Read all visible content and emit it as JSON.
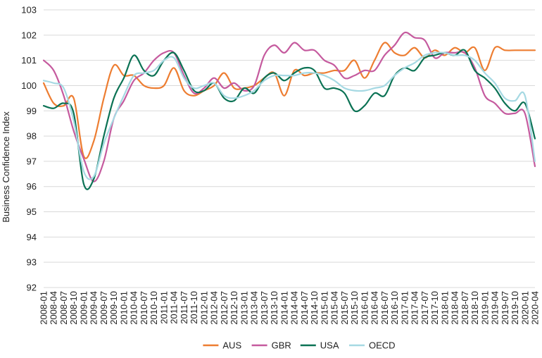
{
  "chart_data": {
    "type": "line",
    "title": "",
    "xlabel": "",
    "ylabel": "Business Confidence Index",
    "ylim": [
      92,
      103
    ],
    "y_ticks": [
      92,
      93,
      94,
      95,
      96,
      97,
      98,
      99,
      100,
      101,
      102,
      103
    ],
    "grid": "horizontal",
    "legend_position": "bottom",
    "x_tick_labels": [
      "2008-01",
      "2008-04",
      "2008-07",
      "2008-10",
      "2009-01",
      "2009-04",
      "2009-07",
      "2009-10",
      "2010-01",
      "2010-04",
      "2010-07",
      "2010-10",
      "2011-01",
      "2011-04",
      "2011-07",
      "2011-10",
      "2012-01",
      "2012-04",
      "2012-07",
      "2012-10",
      "2013-01",
      "2013-04",
      "2013-07",
      "2013-10",
      "2014-01",
      "2014-04",
      "2014-07",
      "2014-10",
      "2015-01",
      "2015-04",
      "2015-07",
      "2015-10",
      "2016-01",
      "2016-04",
      "2016-07",
      "2016-10",
      "2017-01",
      "2017-04",
      "2017-07",
      "2017-10",
      "2018-01",
      "2018-04",
      "2018-07",
      "2018-10",
      "2019-01",
      "2019-04",
      "2019-07",
      "2019-10",
      "2020-01",
      "2020-04"
    ],
    "series": [
      {
        "name": "AUS",
        "color": "#ED7D31",
        "values": [
          100.1,
          99.3,
          99.2,
          99.5,
          97.2,
          97.8,
          99.5,
          100.8,
          100.4,
          100.4,
          100.0,
          99.9,
          100.0,
          100.7,
          99.8,
          99.6,
          99.8,
          100.0,
          100.5,
          99.9,
          99.9,
          100.0,
          100.3,
          100.5,
          99.6,
          100.6,
          100.4,
          100.5,
          100.5,
          100.6,
          100.6,
          101.0,
          100.3,
          101.0,
          101.7,
          101.3,
          101.2,
          101.5,
          101.1,
          101.4,
          101.2,
          101.5,
          101.3,
          101.5,
          100.6,
          101.5,
          101.4,
          101.4,
          101.4,
          101.4
        ]
      },
      {
        "name": "GBR",
        "color": "#C55A9E",
        "values": [
          101.0,
          100.6,
          99.6,
          98.2,
          97.1,
          96.2,
          97.0,
          98.7,
          99.4,
          100.2,
          100.5,
          101.0,
          101.3,
          101.3,
          100.4,
          99.7,
          99.9,
          100.3,
          99.9,
          100.1,
          99.8,
          100.0,
          101.2,
          101.6,
          101.3,
          101.7,
          101.4,
          101.4,
          101.0,
          100.8,
          100.3,
          100.4,
          100.6,
          100.6,
          101.2,
          101.6,
          102.1,
          101.9,
          101.8,
          101.1,
          101.3,
          101.3,
          101.3,
          100.7,
          99.6,
          99.3,
          98.9,
          98.9,
          98.9,
          96.8
        ]
      },
      {
        "name": "USA",
        "color": "#0B7254",
        "values": [
          99.2,
          99.1,
          99.3,
          98.9,
          96.1,
          96.3,
          98.0,
          99.5,
          100.3,
          101.2,
          100.6,
          100.4,
          101.0,
          101.3,
          100.6,
          99.8,
          99.8,
          100.1,
          99.5,
          99.4,
          99.9,
          99.7,
          100.3,
          100.5,
          100.2,
          100.5,
          100.7,
          100.6,
          99.9,
          99.9,
          99.7,
          99.0,
          99.2,
          99.7,
          99.6,
          100.4,
          100.7,
          100.6,
          101.1,
          101.2,
          101.3,
          101.2,
          101.4,
          100.6,
          100.3,
          99.9,
          99.3,
          99.0,
          99.3,
          97.9
        ]
      },
      {
        "name": "OECD",
        "color": "#A6D9E3",
        "values": [
          100.2,
          100.1,
          99.9,
          98.6,
          96.6,
          96.4,
          97.7,
          98.7,
          99.6,
          100.4,
          100.5,
          100.6,
          101.0,
          101.1,
          100.3,
          99.9,
          100.0,
          100.1,
          99.6,
          99.5,
          99.6,
          99.8,
          100.2,
          100.4,
          100.4,
          100.4,
          100.5,
          100.5,
          100.4,
          100.2,
          99.9,
          99.8,
          99.8,
          99.9,
          100.0,
          100.4,
          100.7,
          100.9,
          101.2,
          101.3,
          101.3,
          101.2,
          101.2,
          101.0,
          100.5,
          100.1,
          99.5,
          99.4,
          99.6,
          97.0
        ]
      }
    ]
  }
}
